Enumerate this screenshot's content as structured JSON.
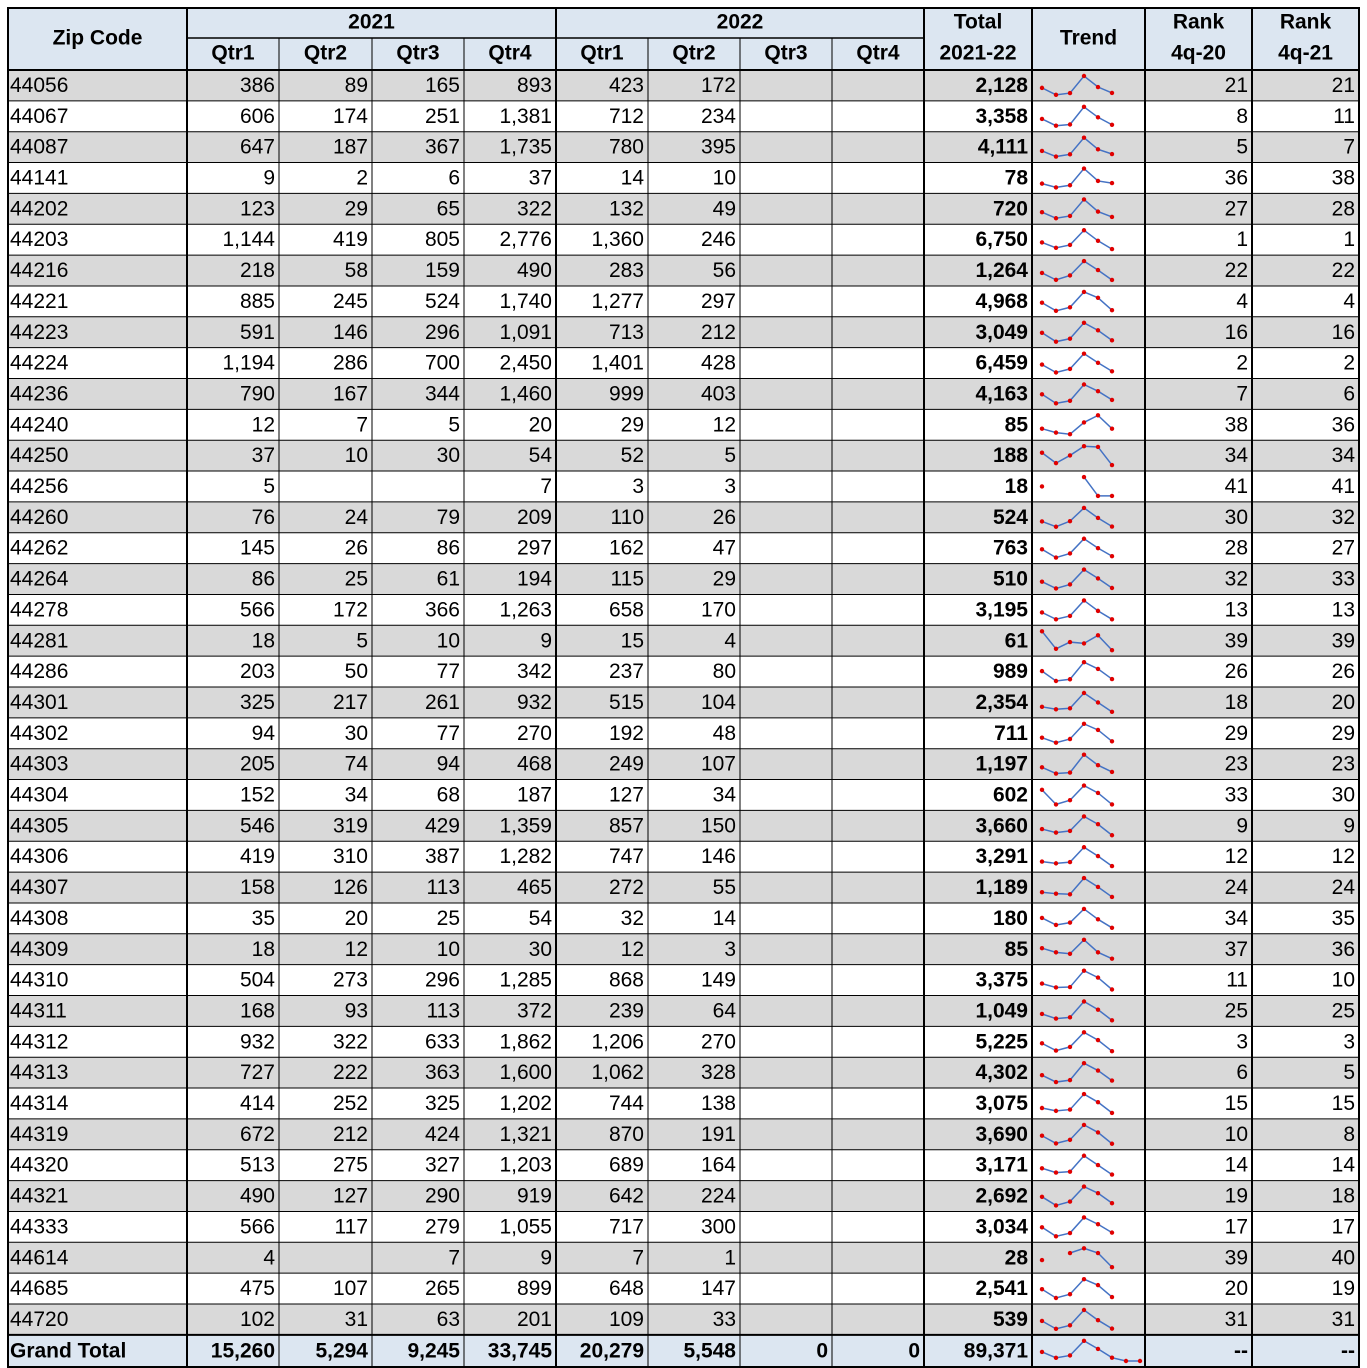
{
  "header": {
    "zip_code": "Zip Code",
    "years": [
      "2021",
      "2022"
    ],
    "quarters": [
      "Qtr1",
      "Qtr2",
      "Qtr3",
      "Qtr4",
      "Qtr1",
      "Qtr2",
      "Qtr3",
      "Qtr4"
    ],
    "total": [
      "Total",
      "2021-22"
    ],
    "trend": "Trend",
    "rank_a": [
      "Rank",
      "4q-20"
    ],
    "rank_b": [
      "Rank",
      "4q-21"
    ]
  },
  "table": {
    "rows": [
      [
        "44056",
        "386",
        "89",
        "165",
        "893",
        "423",
        "172",
        null,
        null,
        "2,128",
        "21",
        "21"
      ],
      [
        "44067",
        "606",
        "174",
        "251",
        "1,381",
        "712",
        "234",
        null,
        null,
        "3,358",
        "8",
        "11"
      ],
      [
        "44087",
        "647",
        "187",
        "367",
        "1,735",
        "780",
        "395",
        null,
        null,
        "4,111",
        "5",
        "7"
      ],
      [
        "44141",
        "9",
        "2",
        "6",
        "37",
        "14",
        "10",
        null,
        null,
        "78",
        "36",
        "38"
      ],
      [
        "44202",
        "123",
        "29",
        "65",
        "322",
        "132",
        "49",
        null,
        null,
        "720",
        "27",
        "28"
      ],
      [
        "44203",
        "1,144",
        "419",
        "805",
        "2,776",
        "1,360",
        "246",
        null,
        null,
        "6,750",
        "1",
        "1"
      ],
      [
        "44216",
        "218",
        "58",
        "159",
        "490",
        "283",
        "56",
        null,
        null,
        "1,264",
        "22",
        "22"
      ],
      [
        "44221",
        "885",
        "245",
        "524",
        "1,740",
        "1,277",
        "297",
        null,
        null,
        "4,968",
        "4",
        "4"
      ],
      [
        "44223",
        "591",
        "146",
        "296",
        "1,091",
        "713",
        "212",
        null,
        null,
        "3,049",
        "16",
        "16"
      ],
      [
        "44224",
        "1,194",
        "286",
        "700",
        "2,450",
        "1,401",
        "428",
        null,
        null,
        "6,459",
        "2",
        "2"
      ],
      [
        "44236",
        "790",
        "167",
        "344",
        "1,460",
        "999",
        "403",
        null,
        null,
        "4,163",
        "7",
        "6"
      ],
      [
        "44240",
        "12",
        "7",
        "5",
        "20",
        "29",
        "12",
        null,
        null,
        "85",
        "38",
        "36"
      ],
      [
        "44250",
        "37",
        "10",
        "30",
        "54",
        "52",
        "5",
        null,
        null,
        "188",
        "34",
        "34"
      ],
      [
        "44256",
        "5",
        null,
        null,
        "7",
        "3",
        "3",
        null,
        null,
        "18",
        "41",
        "41"
      ],
      [
        "44260",
        "76",
        "24",
        "79",
        "209",
        "110",
        "26",
        null,
        null,
        "524",
        "30",
        "32"
      ],
      [
        "44262",
        "145",
        "26",
        "86",
        "297",
        "162",
        "47",
        null,
        null,
        "763",
        "28",
        "27"
      ],
      [
        "44264",
        "86",
        "25",
        "61",
        "194",
        "115",
        "29",
        null,
        null,
        "510",
        "32",
        "33"
      ],
      [
        "44278",
        "566",
        "172",
        "366",
        "1,263",
        "658",
        "170",
        null,
        null,
        "3,195",
        "13",
        "13"
      ],
      [
        "44281",
        "18",
        "5",
        "10",
        "9",
        "15",
        "4",
        null,
        null,
        "61",
        "39",
        "39"
      ],
      [
        "44286",
        "203",
        "50",
        "77",
        "342",
        "237",
        "80",
        null,
        null,
        "989",
        "26",
        "26"
      ],
      [
        "44301",
        "325",
        "217",
        "261",
        "932",
        "515",
        "104",
        null,
        null,
        "2,354",
        "18",
        "20"
      ],
      [
        "44302",
        "94",
        "30",
        "77",
        "270",
        "192",
        "48",
        null,
        null,
        "711",
        "29",
        "29"
      ],
      [
        "44303",
        "205",
        "74",
        "94",
        "468",
        "249",
        "107",
        null,
        null,
        "1,197",
        "23",
        "23"
      ],
      [
        "44304",
        "152",
        "34",
        "68",
        "187",
        "127",
        "34",
        null,
        null,
        "602",
        "33",
        "30"
      ],
      [
        "44305",
        "546",
        "319",
        "429",
        "1,359",
        "857",
        "150",
        null,
        null,
        "3,660",
        "9",
        "9"
      ],
      [
        "44306",
        "419",
        "310",
        "387",
        "1,282",
        "747",
        "146",
        null,
        null,
        "3,291",
        "12",
        "12"
      ],
      [
        "44307",
        "158",
        "126",
        "113",
        "465",
        "272",
        "55",
        null,
        null,
        "1,189",
        "24",
        "24"
      ],
      [
        "44308",
        "35",
        "20",
        "25",
        "54",
        "32",
        "14",
        null,
        null,
        "180",
        "34",
        "35"
      ],
      [
        "44309",
        "18",
        "12",
        "10",
        "30",
        "12",
        "3",
        null,
        null,
        "85",
        "37",
        "36"
      ],
      [
        "44310",
        "504",
        "273",
        "296",
        "1,285",
        "868",
        "149",
        null,
        null,
        "3,375",
        "11",
        "10"
      ],
      [
        "44311",
        "168",
        "93",
        "113",
        "372",
        "239",
        "64",
        null,
        null,
        "1,049",
        "25",
        "25"
      ],
      [
        "44312",
        "932",
        "322",
        "633",
        "1,862",
        "1,206",
        "270",
        null,
        null,
        "5,225",
        "3",
        "3"
      ],
      [
        "44313",
        "727",
        "222",
        "363",
        "1,600",
        "1,062",
        "328",
        null,
        null,
        "4,302",
        "6",
        "5"
      ],
      [
        "44314",
        "414",
        "252",
        "325",
        "1,202",
        "744",
        "138",
        null,
        null,
        "3,075",
        "15",
        "15"
      ],
      [
        "44319",
        "672",
        "212",
        "424",
        "1,321",
        "870",
        "191",
        null,
        null,
        "3,690",
        "10",
        "8"
      ],
      [
        "44320",
        "513",
        "275",
        "327",
        "1,203",
        "689",
        "164",
        null,
        null,
        "3,171",
        "14",
        "14"
      ],
      [
        "44321",
        "490",
        "127",
        "290",
        "919",
        "642",
        "224",
        null,
        null,
        "2,692",
        "19",
        "18"
      ],
      [
        "44333",
        "566",
        "117",
        "279",
        "1,055",
        "717",
        "300",
        null,
        null,
        "3,034",
        "17",
        "17"
      ],
      [
        "44614",
        "4",
        null,
        "7",
        "9",
        "7",
        "1",
        null,
        null,
        "28",
        "39",
        "40"
      ],
      [
        "44685",
        "475",
        "107",
        "265",
        "899",
        "648",
        "147",
        null,
        null,
        "2,541",
        "20",
        "19"
      ],
      [
        "44720",
        "102",
        "31",
        "63",
        "201",
        "109",
        "33",
        null,
        null,
        "539",
        "31",
        "31"
      ]
    ],
    "grand_total": [
      "Grand Total",
      "15,260",
      "5,294",
      "9,245",
      "33,745",
      "20,279",
      "5,548",
      "0",
      "0",
      "89,371",
      "--",
      "--"
    ]
  }
}
